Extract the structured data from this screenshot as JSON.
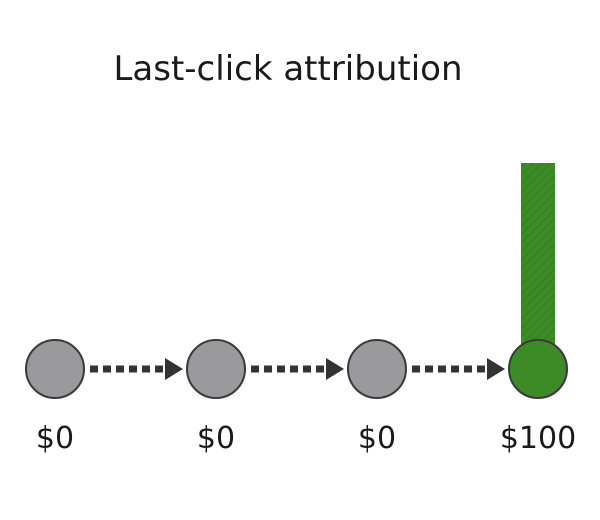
{
  "title": "Last-click attribution",
  "colors": {
    "node_inactive": "#9a9a9c",
    "node_converting": "#3d8b27",
    "node_outline": "#3a3a3a",
    "arrow": "#333333",
    "bar": "#3d8b27",
    "text": "#1a1a1a"
  },
  "touchpoints": [
    {
      "value": 0,
      "label": "$0",
      "converting": false
    },
    {
      "value": 0,
      "label": "$0",
      "converting": false
    },
    {
      "value": 0,
      "label": "$0",
      "converting": false
    },
    {
      "value": 100,
      "label": "$100",
      "converting": true
    }
  ]
}
